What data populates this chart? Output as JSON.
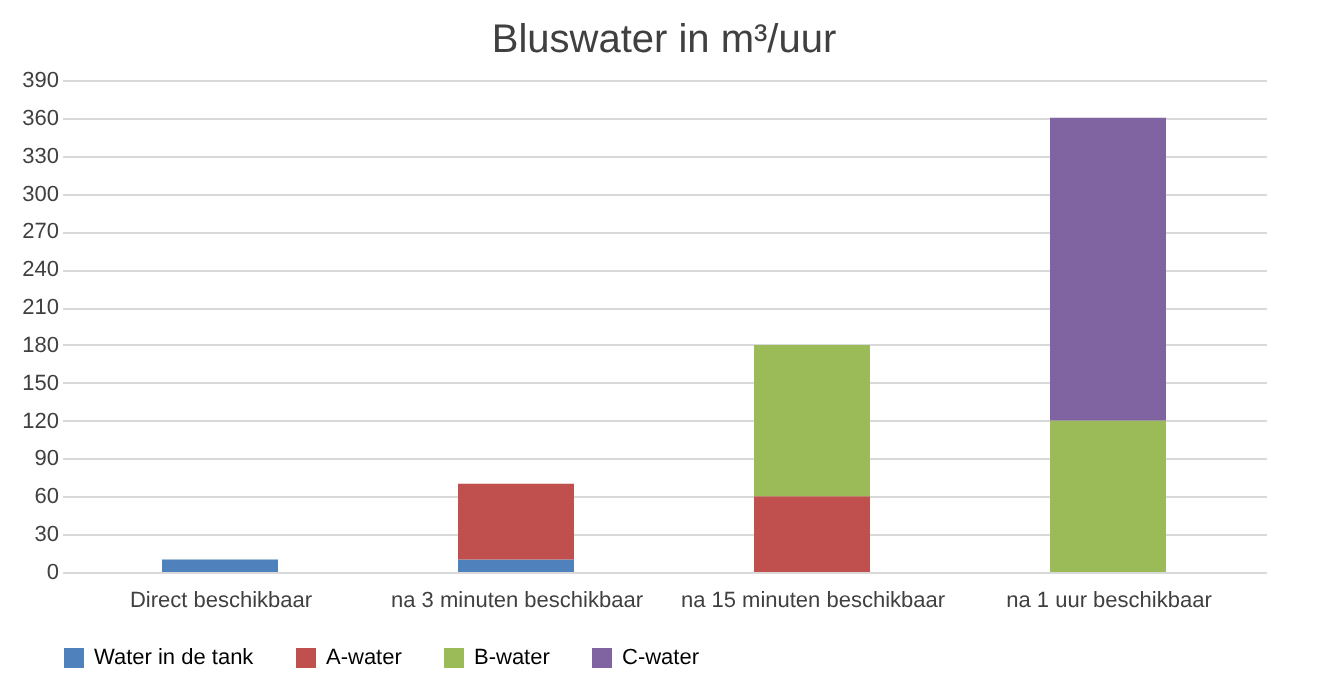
{
  "chart_data": {
    "type": "bar",
    "title": "Bluswater in m³/uur",
    "stacked": true,
    "categories": [
      "Direct beschikbaar",
      "na 3 minuten beschikbaar",
      "na 15 minuten beschikbaar",
      "na 1 uur beschikbaar"
    ],
    "series": [
      {
        "name": "Water in de tank",
        "color": "#4f81bd",
        "values": [
          10,
          10,
          0,
          0
        ]
      },
      {
        "name": "A-water",
        "color": "#c0504d",
        "values": [
          0,
          60,
          60,
          0
        ]
      },
      {
        "name": "B-water",
        "color": "#9bbb59",
        "values": [
          0,
          0,
          120,
          120
        ]
      },
      {
        "name": "C-water",
        "color": "#8064a2",
        "values": [
          0,
          0,
          0,
          240
        ]
      }
    ],
    "ylim": [
      0,
      390
    ],
    "yticks": [
      0,
      30,
      60,
      90,
      120,
      150,
      180,
      210,
      240,
      270,
      300,
      330,
      360,
      390
    ],
    "grid": "y",
    "legend": "bottom"
  }
}
